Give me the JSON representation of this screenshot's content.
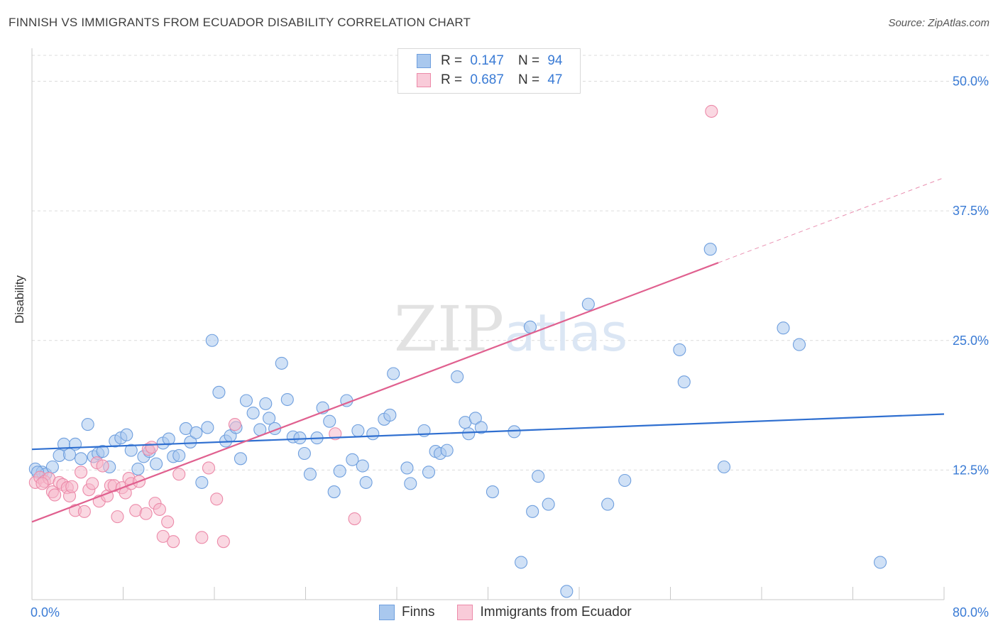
{
  "title": "FINNISH VS IMMIGRANTS FROM ECUADOR DISABILITY CORRELATION CHART",
  "source": "Source: ZipAtlas.com",
  "watermark": {
    "bold": "ZIP",
    "light": "atlas"
  },
  "legend": {
    "rows": [
      {
        "r_label": "R =",
        "r_value": "0.147",
        "n_label": "N =",
        "n_value": "94"
      },
      {
        "r_label": "R =",
        "r_value": "0.687",
        "n_label": "N =",
        "n_value": "47"
      }
    ]
  },
  "bottom_legend": [
    "Finns",
    "Immigrants from Ecuador"
  ],
  "colors": {
    "blue_fill": "#a9c8ee",
    "blue_stroke": "#6f9fde",
    "blue_line": "#2f6fd0",
    "pink_fill": "#f6b8cb",
    "pink_stroke": "#ec8aa9",
    "pink_line": "#e0608f",
    "tick_label": "#3a7bd5",
    "grid": "#dcdcdc"
  },
  "chart_data": {
    "type": "scatter",
    "ylabel": "Disability",
    "xlim": [
      0,
      80
    ],
    "ylim": [
      0,
      52.5
    ],
    "x_tick_labels": [
      "0.0%",
      "80.0%"
    ],
    "y_ticks": [
      {
        "value": 12.5,
        "label": "12.5%"
      },
      {
        "value": 25.0,
        "label": "25.0%"
      },
      {
        "value": 37.5,
        "label": "37.5%"
      },
      {
        "value": 50.0,
        "label": "50.0%"
      }
    ],
    "series": [
      {
        "name": "Finns",
        "color": "blue",
        "trend": {
          "x0": 0,
          "y0": 14.5,
          "x1": 80,
          "y1": 17.9,
          "dashed_to": null
        },
        "points": [
          [
            0.3,
            12.6
          ],
          [
            0.9,
            12.3
          ],
          [
            1.2,
            12.1
          ],
          [
            1.8,
            12.8
          ],
          [
            2.4,
            13.9
          ],
          [
            2.8,
            15.0
          ],
          [
            3.3,
            14.0
          ],
          [
            3.8,
            15.0
          ],
          [
            4.3,
            13.6
          ],
          [
            4.9,
            16.9
          ],
          [
            5.4,
            13.8
          ],
          [
            5.8,
            14.1
          ],
          [
            6.2,
            14.3
          ],
          [
            6.8,
            12.8
          ],
          [
            7.3,
            15.3
          ],
          [
            7.8,
            15.6
          ],
          [
            8.3,
            15.9
          ],
          [
            8.7,
            14.4
          ],
          [
            9.3,
            12.6
          ],
          [
            9.8,
            13.8
          ],
          [
            10.3,
            14.3
          ],
          [
            10.9,
            13.1
          ],
          [
            11.5,
            15.1
          ],
          [
            12.0,
            15.5
          ],
          [
            12.4,
            13.8
          ],
          [
            12.9,
            13.9
          ],
          [
            13.5,
            16.5
          ],
          [
            13.9,
            15.2
          ],
          [
            14.4,
            16.1
          ],
          [
            14.9,
            11.3
          ],
          [
            15.4,
            16.6
          ],
          [
            15.8,
            25.0
          ],
          [
            16.4,
            20.0
          ],
          [
            17.0,
            15.3
          ],
          [
            17.4,
            15.8
          ],
          [
            17.9,
            16.6
          ],
          [
            18.3,
            13.6
          ],
          [
            18.8,
            19.2
          ],
          [
            19.4,
            18.0
          ],
          [
            20.0,
            16.4
          ],
          [
            20.5,
            18.9
          ],
          [
            20.8,
            17.5
          ],
          [
            21.3,
            16.5
          ],
          [
            21.9,
            22.8
          ],
          [
            22.4,
            19.3
          ],
          [
            22.9,
            15.7
          ],
          [
            23.5,
            15.6
          ],
          [
            23.9,
            14.1
          ],
          [
            24.4,
            12.1
          ],
          [
            25.0,
            15.6
          ],
          [
            25.5,
            18.5
          ],
          [
            26.1,
            17.2
          ],
          [
            26.5,
            10.4
          ],
          [
            27.0,
            12.4
          ],
          [
            27.6,
            19.2
          ],
          [
            28.1,
            13.5
          ],
          [
            28.6,
            16.3
          ],
          [
            29.0,
            12.9
          ],
          [
            29.3,
            11.3
          ],
          [
            29.9,
            16.0
          ],
          [
            30.9,
            17.4
          ],
          [
            31.4,
            17.8
          ],
          [
            31.7,
            21.8
          ],
          [
            32.9,
            12.7
          ],
          [
            33.2,
            11.2
          ],
          [
            34.4,
            16.3
          ],
          [
            34.8,
            12.3
          ],
          [
            35.4,
            14.3
          ],
          [
            35.8,
            14.1
          ],
          [
            36.4,
            14.4
          ],
          [
            37.3,
            21.5
          ],
          [
            38.0,
            17.1
          ],
          [
            38.3,
            16.0
          ],
          [
            38.9,
            17.5
          ],
          [
            39.4,
            16.6
          ],
          [
            40.4,
            10.4
          ],
          [
            42.3,
            16.2
          ],
          [
            42.9,
            3.6
          ],
          [
            43.7,
            26.3
          ],
          [
            43.9,
            8.5
          ],
          [
            44.4,
            11.9
          ],
          [
            45.3,
            9.2
          ],
          [
            46.9,
            0.8
          ],
          [
            48.8,
            28.5
          ],
          [
            50.5,
            9.2
          ],
          [
            52.0,
            11.5
          ],
          [
            56.8,
            24.1
          ],
          [
            57.2,
            21.0
          ],
          [
            59.5,
            33.8
          ],
          [
            60.7,
            12.8
          ],
          [
            65.9,
            26.2
          ],
          [
            67.3,
            24.6
          ],
          [
            74.4,
            3.6
          ],
          [
            0.5,
            12.3
          ]
        ]
      },
      {
        "name": "Immigrants from Ecuador",
        "color": "pink",
        "trend": {
          "x0": 0,
          "y0": 7.5,
          "x1": 60.2,
          "y1": 32.5,
          "dashed_to": {
            "x": 80,
            "y": 40.7
          }
        },
        "points": [
          [
            0.3,
            11.3
          ],
          [
            0.7,
            11.8
          ],
          [
            1.1,
            11.4
          ],
          [
            1.5,
            11.7
          ],
          [
            1.8,
            10.4
          ],
          [
            2.0,
            10.1
          ],
          [
            2.4,
            11.3
          ],
          [
            2.7,
            11.1
          ],
          [
            3.1,
            10.8
          ],
          [
            3.3,
            10.0
          ],
          [
            3.5,
            10.9
          ],
          [
            3.8,
            8.6
          ],
          [
            4.3,
            12.3
          ],
          [
            4.6,
            8.5
          ],
          [
            5.0,
            10.6
          ],
          [
            5.3,
            11.2
          ],
          [
            5.7,
            13.2
          ],
          [
            5.9,
            9.5
          ],
          [
            6.2,
            12.9
          ],
          [
            6.6,
            10.0
          ],
          [
            6.9,
            11.0
          ],
          [
            7.2,
            11.0
          ],
          [
            7.5,
            8.0
          ],
          [
            7.9,
            10.8
          ],
          [
            8.2,
            10.3
          ],
          [
            8.5,
            11.7
          ],
          [
            8.7,
            11.2
          ],
          [
            9.1,
            8.6
          ],
          [
            9.4,
            11.4
          ],
          [
            10.0,
            8.3
          ],
          [
            10.2,
            14.5
          ],
          [
            10.5,
            14.7
          ],
          [
            10.8,
            9.3
          ],
          [
            11.2,
            8.7
          ],
          [
            11.5,
            6.1
          ],
          [
            11.9,
            7.5
          ],
          [
            12.4,
            5.6
          ],
          [
            12.9,
            12.1
          ],
          [
            14.9,
            6.0
          ],
          [
            15.5,
            12.7
          ],
          [
            16.2,
            9.7
          ],
          [
            16.8,
            5.6
          ],
          [
            17.8,
            16.9
          ],
          [
            26.6,
            16.0
          ],
          [
            28.3,
            7.8
          ],
          [
            59.6,
            47.1
          ],
          [
            0.9,
            11.2
          ]
        ]
      }
    ]
  }
}
